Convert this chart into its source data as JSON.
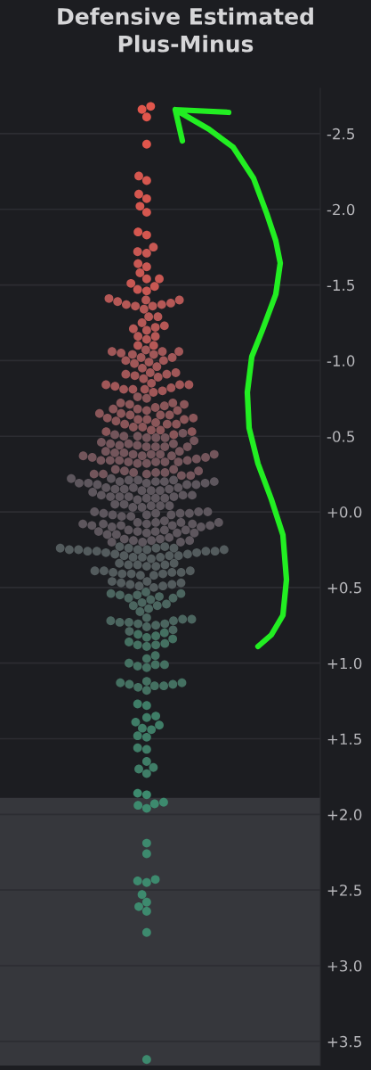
{
  "chart_data": {
    "type": "scatter",
    "title": "Defensive Estimated Plus-Minus",
    "categories": [
      null
    ],
    "series": [
      {
        "color": "#e0564c",
        "x": [
          null,
          null,
          null,
          null
        ],
        "values": [
          -2.68,
          -2.66,
          -2.61,
          -2.43
        ]
      },
      {
        "color": "#d5574f",
        "x": [
          null,
          null,
          null,
          null,
          null,
          null,
          null,
          null
        ],
        "values": [
          -2.22,
          -2.19,
          -2.1,
          -2.07,
          -2.02,
          -1.98,
          -1.85,
          -1.83
        ]
      },
      {
        "color": "#c85853",
        "x": [
          null,
          null,
          null,
          null,
          null,
          null,
          null,
          null,
          null,
          null,
          null,
          null
        ],
        "values": [
          -1.75,
          -1.72,
          -1.71,
          -1.64,
          -1.62,
          -1.58,
          -1.54,
          -1.54,
          -1.51,
          -1.49,
          -1.47,
          -1.46
        ]
      },
      {
        "color": "#b55856",
        "x": [
          null,
          null,
          null,
          null,
          null,
          null,
          null,
          null,
          null,
          null,
          null,
          null,
          null,
          null,
          null,
          null,
          null,
          null,
          null,
          null,
          null,
          null
        ],
        "values": [
          -1.41,
          -1.4,
          -1.4,
          -1.39,
          -1.38,
          -1.37,
          -1.37,
          -1.36,
          -1.36,
          -1.34,
          -1.29,
          -1.29,
          -1.25,
          -1.23,
          -1.22,
          -1.21,
          -1.2,
          -1.16,
          -1.16,
          -1.14,
          -1.1,
          -1.1
        ]
      },
      {
        "color": "#a05758",
        "x": [
          null,
          null,
          null,
          null,
          null,
          null,
          null,
          null,
          null,
          null,
          null,
          null,
          null,
          null,
          null,
          null,
          null,
          null,
          null,
          null,
          null,
          null,
          null,
          null,
          null,
          null,
          null,
          null,
          null,
          null,
          null,
          null,
          null
        ],
        "values": [
          -1.07,
          -1.06,
          -1.06,
          -1.06,
          -1.05,
          -1.04,
          -1.04,
          -1.02,
          -1.02,
          -1.0,
          -1.0,
          -0.99,
          -0.98,
          -0.96,
          -0.95,
          -0.92,
          -0.92,
          -0.91,
          -0.91,
          -0.9,
          -0.89,
          -0.88,
          -0.85,
          -0.84,
          -0.84,
          -0.84,
          -0.83,
          -0.82,
          -0.81,
          -0.81,
          -0.81,
          -0.8,
          -0.79
        ]
      },
      {
        "color": "#8a5659",
        "x": [
          null,
          null,
          null,
          null,
          null,
          null,
          null,
          null,
          null,
          null,
          null,
          null,
          null,
          null,
          null,
          null,
          null,
          null,
          null,
          null,
          null,
          null,
          null,
          null,
          null,
          null,
          null,
          null,
          null,
          null,
          null,
          null,
          null,
          null
        ],
        "values": [
          -0.76,
          -0.75,
          -0.72,
          -0.72,
          -0.71,
          -0.71,
          -0.7,
          -0.69,
          -0.68,
          -0.68,
          -0.67,
          -0.67,
          -0.65,
          -0.65,
          -0.64,
          -0.64,
          -0.64,
          -0.62,
          -0.62,
          -0.61,
          -0.61,
          -0.61,
          -0.6,
          -0.59,
          -0.58,
          -0.58,
          -0.58,
          -0.56,
          -0.56,
          -0.54,
          -0.54,
          -0.53,
          -0.53,
          -0.51
        ]
      },
      {
        "color": "#73555b",
        "x": [
          null,
          null,
          null,
          null,
          null,
          null,
          null,
          null,
          null,
          null,
          null,
          null,
          null,
          null,
          null,
          null,
          null,
          null,
          null,
          null,
          null,
          null,
          null,
          null,
          null,
          null,
          null,
          null,
          null,
          null,
          null,
          null,
          null,
          null,
          null,
          null,
          null,
          null,
          null,
          null,
          null,
          null,
          null,
          null,
          null,
          null,
          null,
          null,
          null,
          null,
          null,
          null,
          null,
          null
        ],
        "values": [
          -0.52,
          -0.51,
          -0.5,
          -0.5,
          -0.49,
          -0.49,
          -0.49,
          -0.47,
          -0.46,
          -0.45,
          -0.45,
          -0.45,
          -0.44,
          -0.44,
          -0.43,
          -0.43,
          -0.43,
          -0.43,
          -0.4,
          -0.4,
          -0.39,
          -0.39,
          -0.38,
          -0.38,
          -0.38,
          -0.38,
          -0.37,
          -0.37,
          -0.37,
          -0.36,
          -0.36,
          -0.35,
          -0.34,
          -0.34,
          -0.34,
          -0.34,
          -0.33,
          -0.33,
          -0.33,
          -0.33,
          -0.32,
          -0.32,
          -0.28,
          -0.28,
          -0.27,
          -0.27,
          -0.26,
          -0.26,
          -0.26,
          -0.25,
          -0.25,
          -0.25,
          -0.24,
          -0.24
        ]
      },
      {
        "color": "#5d565d",
        "x": [
          null,
          null,
          null,
          null,
          null,
          null,
          null,
          null,
          null,
          null,
          null,
          null,
          null,
          null,
          null,
          null,
          null,
          null,
          null,
          null,
          null,
          null,
          null,
          null,
          null,
          null,
          null,
          null,
          null,
          null,
          null,
          null,
          null,
          null,
          null,
          null,
          null,
          null,
          null,
          null,
          null,
          null,
          null,
          null,
          null,
          null,
          null,
          null,
          null,
          null,
          null,
          null,
          null,
          null,
          null,
          null,
          null,
          null,
          null,
          null,
          null,
          null,
          null,
          null,
          null,
          null,
          null,
          null,
          null,
          null,
          null,
          null,
          null,
          null,
          null,
          null,
          null,
          null,
          null,
          null,
          null,
          null,
          null,
          null,
          null,
          null,
          null,
          null,
          null,
          null,
          null
        ],
        "values": [
          -0.22,
          -0.22,
          -0.21,
          -0.21,
          -0.21,
          -0.2,
          -0.2,
          -0.2,
          -0.2,
          -0.19,
          -0.19,
          -0.19,
          -0.19,
          -0.18,
          -0.18,
          -0.18,
          -0.16,
          -0.16,
          -0.16,
          -0.15,
          -0.15,
          -0.15,
          -0.14,
          -0.14,
          -0.14,
          -0.13,
          -0.11,
          -0.11,
          -0.11,
          -0.1,
          -0.1,
          -0.1,
          -0.1,
          -0.09,
          -0.09,
          -0.09,
          -0.08,
          -0.05,
          -0.05,
          -0.04,
          -0.04,
          -0.04,
          -0.03,
          -0.03,
          0.0,
          0.0,
          0.0,
          0.01,
          0.01,
          0.01,
          0.01,
          0.02,
          0.02,
          0.02,
          0.03,
          0.03,
          0.06,
          0.07,
          0.07,
          0.07,
          0.07,
          0.08,
          0.08,
          0.08,
          0.08,
          0.09,
          0.09,
          0.09,
          0.09,
          0.1,
          0.1,
          0.12,
          0.12,
          0.12,
          0.13,
          0.13,
          0.13,
          0.14,
          0.14,
          0.14,
          0.15,
          0.15,
          0.17,
          0.18,
          0.18,
          0.19,
          0.19,
          0.19,
          0.2,
          0.2,
          0.2
        ]
      },
      {
        "color": "#535b5d",
        "x": [
          null,
          null,
          null,
          null,
          null,
          null,
          null,
          null,
          null,
          null,
          null,
          null,
          null,
          null,
          null,
          null,
          null,
          null,
          null,
          null,
          null,
          null,
          null,
          null,
          null,
          null,
          null,
          null,
          null,
          null,
          null,
          null,
          null,
          null,
          null,
          null,
          null,
          null,
          null,
          null,
          null,
          null,
          null,
          null,
          null,
          null,
          null,
          null,
          null,
          null,
          null,
          null,
          null
        ],
        "values": [
          0.23,
          0.23,
          0.24,
          0.24,
          0.24,
          0.24,
          0.25,
          0.25,
          0.25,
          0.25,
          0.25,
          0.26,
          0.26,
          0.26,
          0.26,
          0.27,
          0.27,
          0.28,
          0.28,
          0.29,
          0.29,
          0.29,
          0.3,
          0.3,
          0.3,
          0.31,
          0.34,
          0.34,
          0.35,
          0.35,
          0.35,
          0.36,
          0.36,
          0.39,
          0.39,
          0.39,
          0.4,
          0.4,
          0.4,
          0.41,
          0.41,
          0.41,
          0.42,
          0.42,
          0.46,
          0.46,
          0.47,
          0.47,
          0.48,
          0.48,
          0.49,
          0.49,
          0.5
        ]
      },
      {
        "color": "#4b655f",
        "x": [
          null,
          null,
          null,
          null,
          null,
          null,
          null,
          null,
          null,
          null,
          null,
          null,
          null,
          null,
          null,
          null,
          null,
          null,
          null,
          null,
          null,
          null,
          null,
          null,
          null,
          null,
          null,
          null
        ],
        "values": [
          0.53,
          0.54,
          0.54,
          0.55,
          0.55,
          0.56,
          0.57,
          0.57,
          0.58,
          0.6,
          0.61,
          0.62,
          0.62,
          0.64,
          0.66,
          0.7,
          0.71,
          0.71,
          0.72,
          0.72,
          0.73,
          0.73,
          0.74,
          0.74,
          0.75,
          0.76,
          0.78,
          0.79
        ]
      },
      {
        "color": "#447061",
        "x": [
          null,
          null,
          null,
          null,
          null,
          null,
          null,
          null,
          null,
          null,
          null,
          null,
          null,
          null,
          null,
          null,
          null,
          null,
          null,
          null,
          null,
          null,
          null,
          null,
          null,
          null
        ],
        "values": [
          0.8,
          0.81,
          0.82,
          0.83,
          0.84,
          0.86,
          0.87,
          0.88,
          0.88,
          0.89,
          0.95,
          0.97,
          1.0,
          1.01,
          1.01,
          1.02,
          1.03,
          1.12,
          1.13,
          1.13,
          1.14,
          1.14,
          1.15,
          1.15,
          1.16,
          1.18
        ]
      },
      {
        "color": "#3f7d67",
        "x": [
          null,
          null,
          null,
          null,
          null,
          null,
          null,
          null,
          null,
          null,
          null,
          null,
          null,
          null,
          null,
          null
        ],
        "values": [
          1.27,
          1.28,
          1.35,
          1.36,
          1.39,
          1.41,
          1.43,
          1.44,
          1.48,
          1.49,
          1.56,
          1.57,
          1.65,
          1.69,
          1.7,
          1.73
        ]
      },
      {
        "color": "#3d8a6e",
        "x": [
          null,
          null,
          null,
          null,
          null,
          null,
          null,
          null,
          null,
          null,
          null,
          null,
          null,
          null,
          null,
          null,
          null
        ],
        "values": [
          1.86,
          1.87,
          1.92,
          1.93,
          1.94,
          1.96,
          2.19,
          2.26,
          2.43,
          2.44,
          2.45,
          2.53,
          2.58,
          2.61,
          2.64,
          2.78,
          3.62
        ]
      }
    ],
    "ylim": [
      3.66,
      -2.8
    ],
    "yticks": [
      {
        "value": -2.5,
        "label": "-2.5"
      },
      {
        "value": -2.0,
        "label": "-2.0"
      },
      {
        "value": -1.5,
        "label": "-1.5"
      },
      {
        "value": -1.0,
        "label": "-1.0"
      },
      {
        "value": -0.5,
        "label": "-0.5"
      },
      {
        "value": 0.0,
        "label": "+0.0"
      },
      {
        "value": 0.5,
        "label": "+0.5"
      },
      {
        "value": 1.0,
        "label": "+1.0"
      },
      {
        "value": 1.5,
        "label": "+1.5"
      },
      {
        "value": 2.0,
        "label": "+2.0"
      },
      {
        "value": 2.5,
        "label": "+2.5"
      },
      {
        "value": 3.0,
        "label": "+3.0"
      },
      {
        "value": 3.5,
        "label": "+3.5"
      }
    ],
    "bands": [
      {
        "axis": "y",
        "from": 1.89,
        "to": 3.66,
        "color": "#36373c"
      }
    ],
    "grid": "y",
    "marker": "circle",
    "tick_labels": "y"
  }
}
